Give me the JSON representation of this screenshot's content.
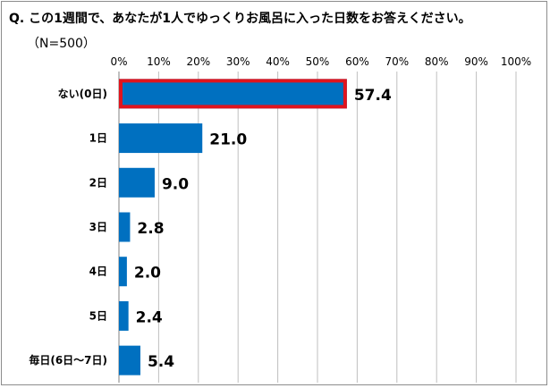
{
  "title": "Q. この1週間で、あなたが1人でゆっくりお風呂に入った日数をお答えください。",
  "subtitle": "（N=500）",
  "chart_data": {
    "type": "bar",
    "orientation": "horizontal",
    "categories": [
      "ない(0日)",
      "1日",
      "2日",
      "3日",
      "4日",
      "5日",
      "毎日(6日〜7日)"
    ],
    "values": [
      57.4,
      21.0,
      9.0,
      2.8,
      2.0,
      2.4,
      5.4
    ],
    "value_labels": [
      "57.4",
      "21.0",
      "9.0",
      "2.8",
      "2.0",
      "2.4",
      "5.4"
    ],
    "xlim": [
      0,
      100
    ],
    "x_ticks": [
      "0%",
      "10%",
      "20%",
      "30%",
      "40%",
      "50%",
      "60%",
      "70%",
      "80%",
      "90%",
      "100%"
    ],
    "x_axis_position": "top",
    "grid": true,
    "highlight_index": 0,
    "colors": {
      "bar": "#0070c0",
      "highlight_border": "#e0141e",
      "grid": "#bfbfbf",
      "axis": "#808080"
    }
  }
}
